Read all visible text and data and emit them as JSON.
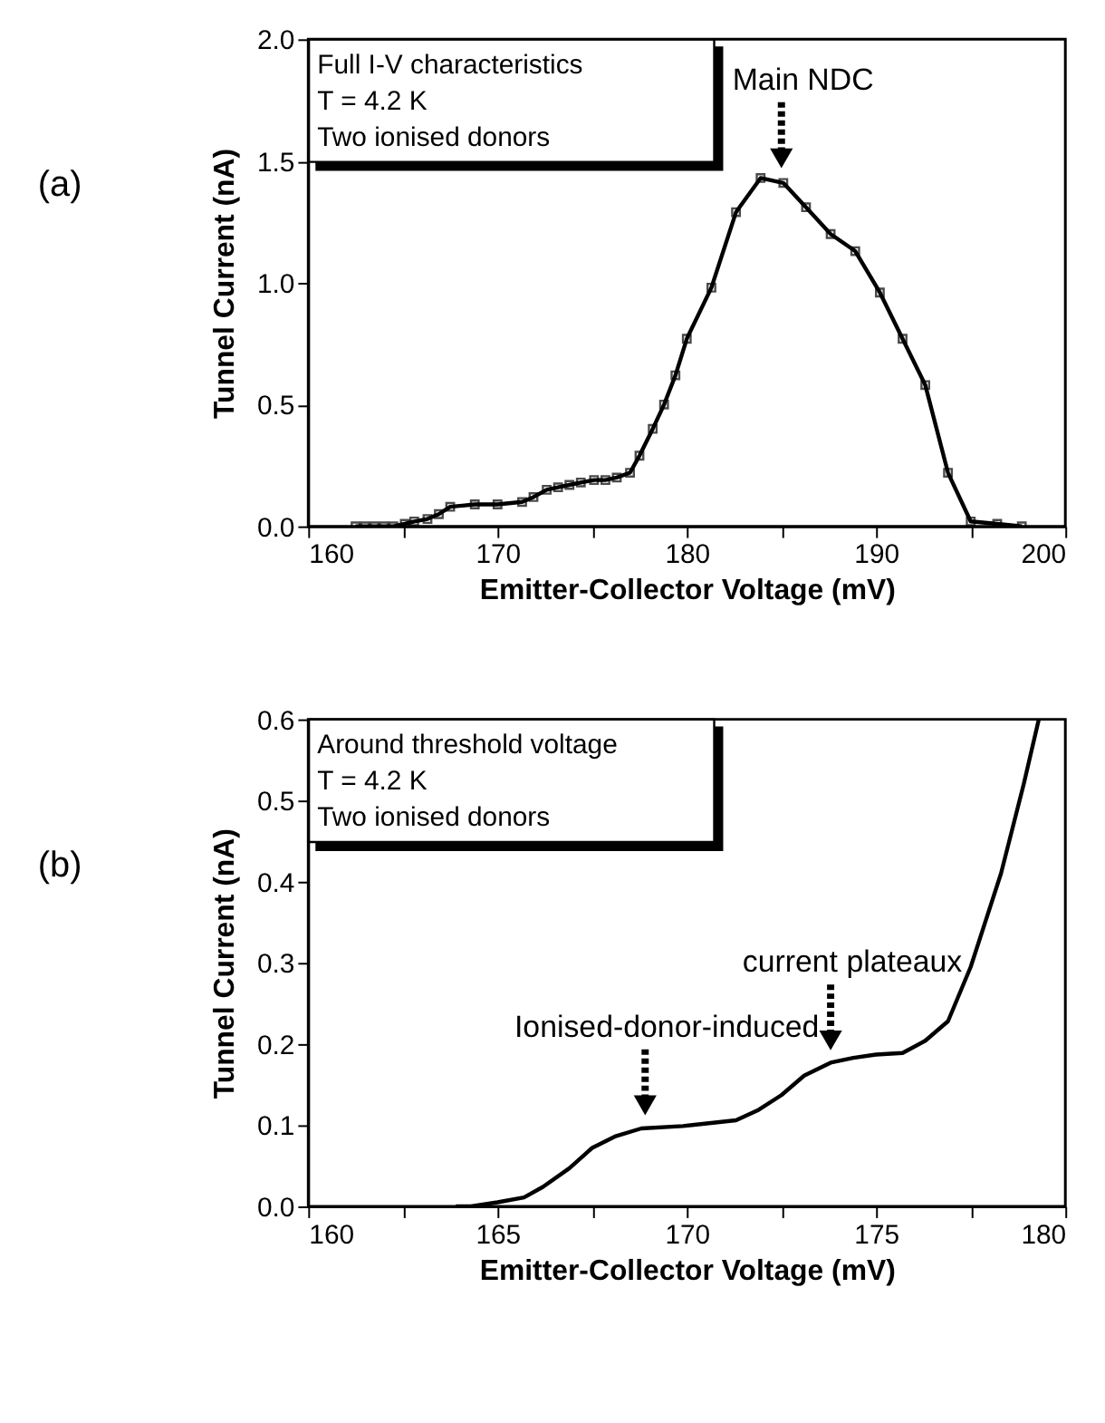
{
  "chart_data": [
    {
      "type": "line",
      "xlabel": "Emitter-Collector Voltage (mV)",
      "ylabel": "Tunnel Current (nA)",
      "marker": "square",
      "line_style": "solid",
      "grid": false,
      "xlim": [
        160,
        200
      ],
      "xticks": [
        160,
        {
          "value": 165,
          "label": null
        },
        170,
        {
          "value": 175,
          "label": null
        },
        180,
        {
          "value": 185,
          "label": null
        },
        190,
        {
          "value": 195,
          "label": null
        },
        200
      ],
      "ylim": [
        0,
        2.0
      ],
      "yticks": [
        {
          "value": 0,
          "label": "0.0"
        },
        {
          "value": 0.5,
          "label": "0.5"
        },
        {
          "value": 1.0,
          "label": "1.0"
        },
        {
          "value": 1.5,
          "label": "1.5"
        },
        {
          "value": 2.0,
          "label": "2.0"
        }
      ],
      "series": [
        {
          "color": "#000000",
          "x": [
            162.5,
            163.0,
            163.5,
            164.0,
            164.5,
            165.1,
            165.6,
            166.3,
            166.9,
            167.5,
            168.8,
            170.0,
            171.3,
            171.9,
            172.6,
            173.2,
            173.8,
            174.4,
            175.1,
            175.7,
            176.3,
            177.0,
            177.5,
            178.2,
            178.8,
            179.4,
            180.0,
            181.3,
            182.6,
            183.9,
            185.1,
            186.3,
            187.6,
            188.9,
            190.2,
            191.4,
            192.6,
            193.8,
            195.0,
            196.4,
            197.7
          ],
          "values": [
            0,
            0,
            0,
            0,
            0,
            0.01,
            0.02,
            0.03,
            0.05,
            0.08,
            0.09,
            0.09,
            0.1,
            0.12,
            0.15,
            0.16,
            0.17,
            0.18,
            0.19,
            0.19,
            0.2,
            0.22,
            0.29,
            0.4,
            0.5,
            0.62,
            0.77,
            0.98,
            1.29,
            1.43,
            1.41,
            1.31,
            1.2,
            1.13,
            0.96,
            0.77,
            0.58,
            0.22,
            0.02,
            0.01,
            0
          ]
        }
      ],
      "annotations": [
        "(a)",
        "Full I-V characteristics",
        "T = 4.2 K",
        "Two ionised donors",
        {
          "text": "Main NDC",
          "x": 185,
          "y": 1.43
        }
      ]
    },
    {
      "type": "line",
      "xlabel": "Emitter-Collector Voltage (mV)",
      "ylabel": "Tunnel Current (nA)",
      "marker": "none",
      "line_style": "solid",
      "grid": false,
      "xlim": [
        160,
        180
      ],
      "xticks": [
        {
          "value": 160,
          "label": "160"
        },
        {
          "value": 162.5,
          "label": null
        },
        165,
        {
          "value": 167.5,
          "label": null
        },
        170,
        {
          "value": 172.5,
          "label": null
        },
        175,
        {
          "value": 177.5,
          "label": null
        },
        180
      ],
      "ylim": [
        0,
        0.6
      ],
      "yticks": [
        {
          "value": 0,
          "label": "0.0"
        },
        {
          "value": 0.1,
          "label": "0.1"
        },
        {
          "value": 0.2,
          "label": "0.2"
        },
        {
          "value": 0.3,
          "label": "0.3"
        },
        {
          "value": 0.4,
          "label": "0.4"
        },
        {
          "value": 0.5,
          "label": "0.5"
        },
        {
          "value": 0.6,
          "label": "0.6"
        }
      ],
      "series": [
        {
          "color": "#000000",
          "x": [
            163.9,
            164.3,
            165.0,
            165.7,
            166.2,
            166.9,
            167.5,
            168.1,
            168.8,
            169.9,
            171.3,
            171.9,
            172.5,
            173.1,
            173.8,
            174.4,
            175.0,
            175.7,
            176.3,
            176.9,
            177.5,
            178.3,
            178.9,
            179.3
          ],
          "values": [
            0,
            0,
            0.005,
            0.011,
            0.024,
            0.047,
            0.072,
            0.086,
            0.096,
            0.099,
            0.106,
            0.119,
            0.137,
            0.161,
            0.177,
            0.183,
            0.187,
            0.189,
            0.204,
            0.228,
            0.295,
            0.41,
            0.52,
            0.6
          ]
        }
      ],
      "annotations": [
        "(b)",
        "Around threshold voltage",
        "T = 4.2 K",
        "Two ionised donors",
        {
          "text": "Ionised-donor-induced",
          "x": 168.9,
          "y": 0.1
        },
        {
          "text": "current plateaux",
          "x": 173.8,
          "y": 0.18
        }
      ]
    }
  ]
}
